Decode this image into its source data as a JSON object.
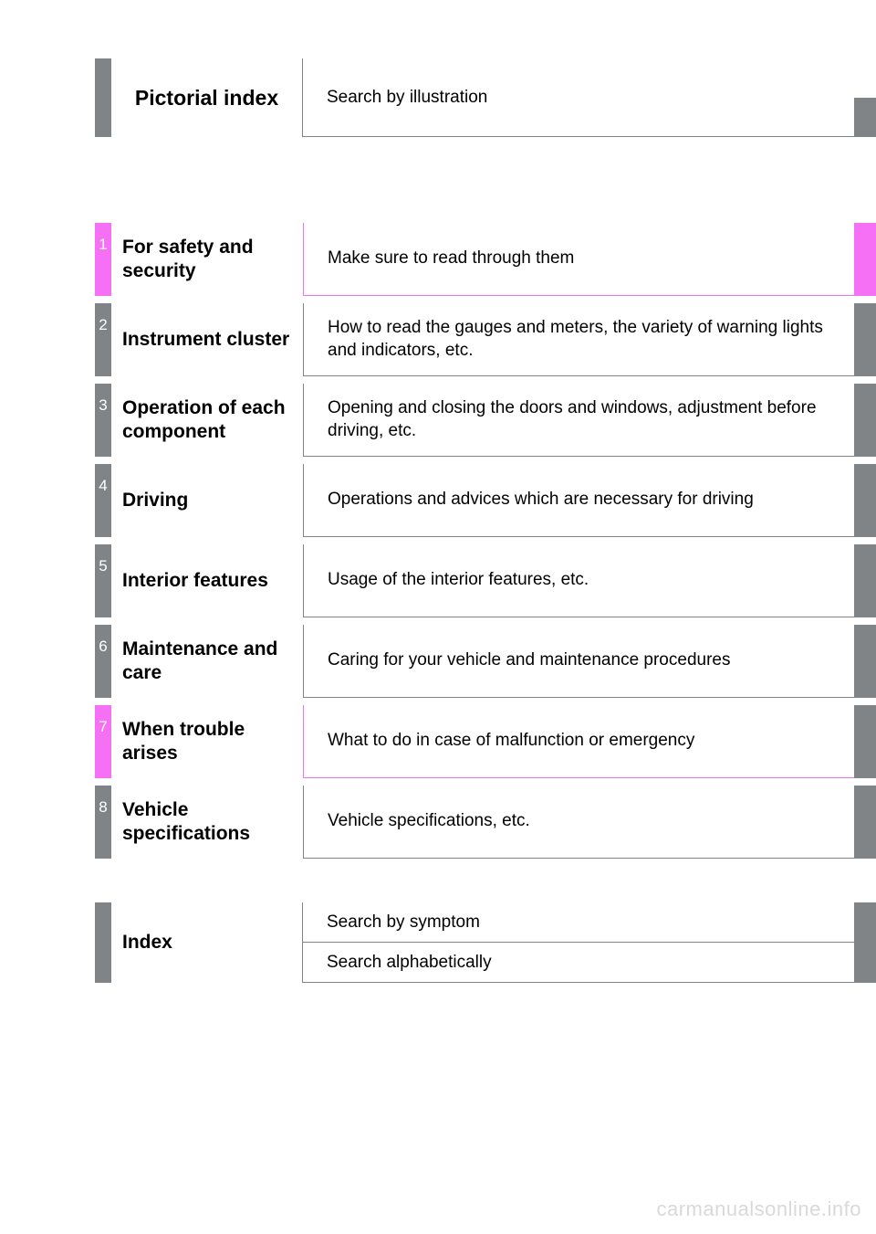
{
  "colors": {
    "gray": "#808486",
    "magenta": "#f570f5",
    "white": "#ffffff",
    "text": "#000000"
  },
  "pictorial": {
    "title": "Pictorial index",
    "desc": "Search by illustration",
    "stub_color": "#808486"
  },
  "chapters": [
    {
      "num": "1",
      "title": "For safety and security",
      "desc": "Make sure to read through them",
      "accent": "#f570f5",
      "divider": "#f570f5",
      "underline": "#f570f5",
      "stub": "#f570f5"
    },
    {
      "num": "2",
      "title": "Instrument cluster",
      "desc": "How to read the gauges and meters, the variety of warning lights and indicators, etc.",
      "accent": "#808486",
      "divider": "#808486",
      "underline": "#808486",
      "stub": "#808486"
    },
    {
      "num": "3",
      "title": "Operation of each component",
      "desc": "Opening and closing the doors and windows, adjustment before driving, etc.",
      "accent": "#808486",
      "divider": "#808486",
      "underline": "#808486",
      "stub": "#808486"
    },
    {
      "num": "4",
      "title": "Driving",
      "desc": "Operations and advices which are necessary for driving",
      "accent": "#808486",
      "divider": "#808486",
      "underline": "#808486",
      "stub": "#808486"
    },
    {
      "num": "5",
      "title": "Interior features",
      "desc": "Usage of the interior features, etc.",
      "accent": "#808486",
      "divider": "#808486",
      "underline": "#808486",
      "stub": "#808486"
    },
    {
      "num": "6",
      "title": "Maintenance and care",
      "desc": "Caring for your vehicle and maintenance procedures",
      "accent": "#808486",
      "divider": "#808486",
      "underline": "#808486",
      "stub": "#808486"
    },
    {
      "num": "7",
      "title": "When trouble arises",
      "desc": "What to do in case of malfunction or emergency",
      "accent": "#f570f5",
      "divider": "#f570f5",
      "underline": "#f570f5",
      "stub": "#808486"
    },
    {
      "num": "8",
      "title": "Vehicle specifications",
      "desc": "Vehicle specifications, etc.",
      "accent": "#808486",
      "divider": "#808486",
      "underline": "#808486",
      "stub": "#808486"
    }
  ],
  "index": {
    "title": "Index",
    "rows": [
      {
        "desc": "Search by symptom"
      },
      {
        "desc": "Search alphabetically"
      }
    ],
    "stub_color": "#808486"
  },
  "watermark": "carmanualsonline.info"
}
